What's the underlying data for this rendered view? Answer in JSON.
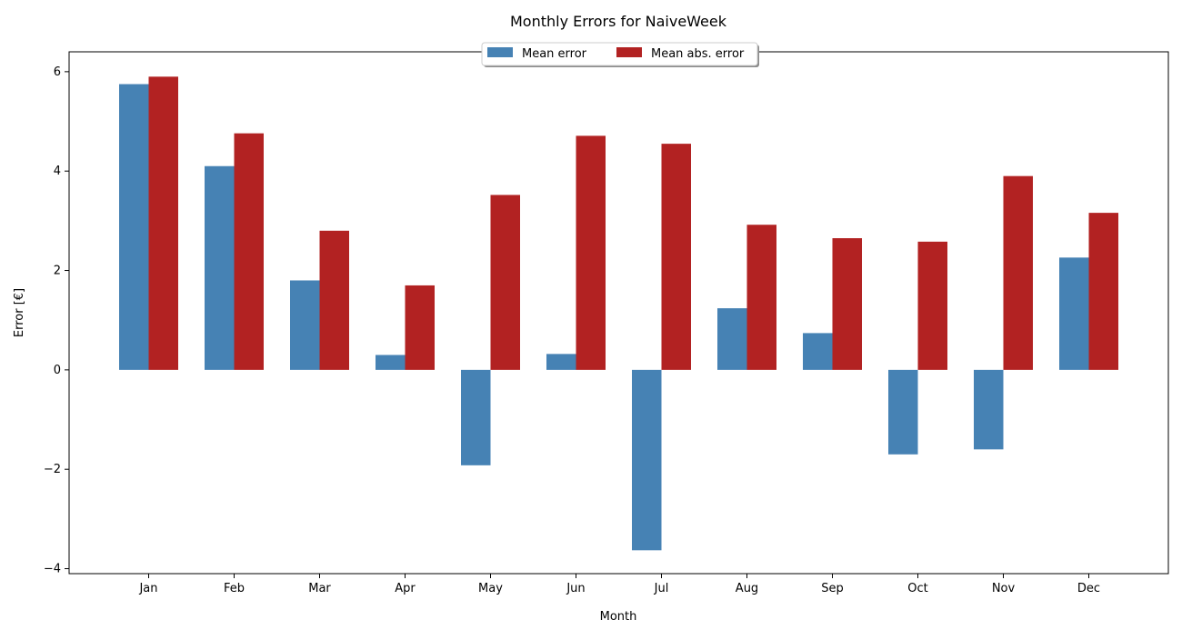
{
  "chart_data": {
    "type": "bar",
    "title": "Monthly Errors for NaiveWeek",
    "xlabel": "Month",
    "ylabel": "Error [€]",
    "categories": [
      "Jan",
      "Feb",
      "Mar",
      "Apr",
      "May",
      "Jun",
      "Jul",
      "Aug",
      "Sep",
      "Oct",
      "Nov",
      "Dec"
    ],
    "series": [
      {
        "name": "Mean error",
        "color": "#4682b4",
        "values": [
          5.75,
          4.1,
          1.8,
          0.3,
          -1.92,
          0.32,
          -3.63,
          1.24,
          0.74,
          -1.7,
          -1.6,
          2.26
        ]
      },
      {
        "name": "Mean abs. error",
        "color": "#b22222",
        "values": [
          5.9,
          4.76,
          2.8,
          1.7,
          3.52,
          4.71,
          4.55,
          2.92,
          2.65,
          2.58,
          3.9,
          3.16
        ]
      }
    ],
    "ylim": [
      -4.1,
      6.4
    ],
    "yticks": [
      -4,
      -2,
      0,
      2,
      4,
      6
    ],
    "ytick_labels": [
      "−4",
      "−2",
      "0",
      "2",
      "4",
      "6"
    ],
    "grid": false,
    "legend_placement": "top-center"
  }
}
